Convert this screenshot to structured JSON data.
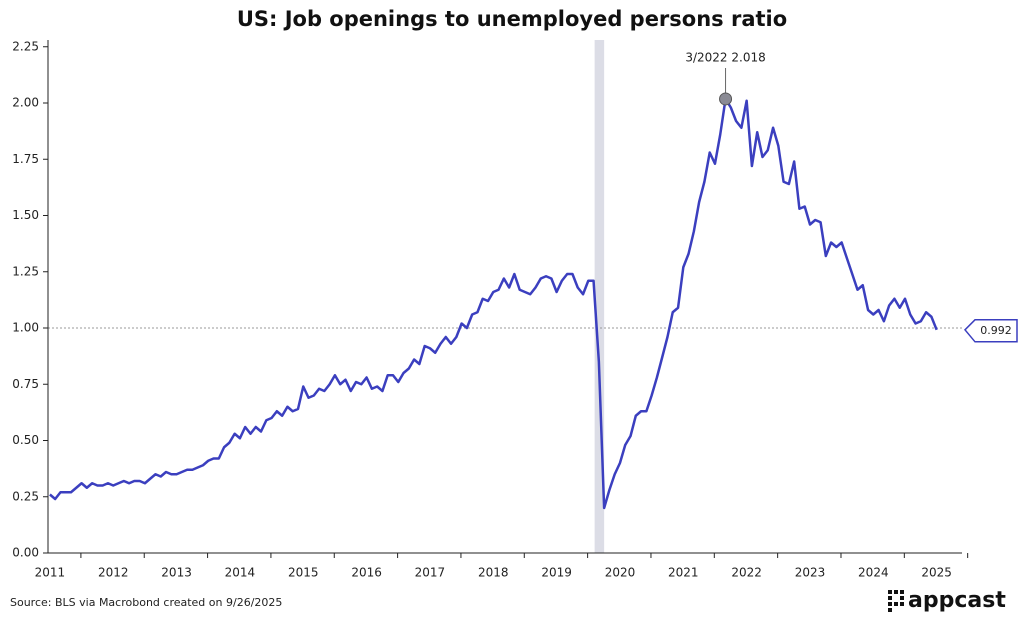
{
  "chart_data": {
    "type": "line",
    "title": "US: Job openings to unemployed persons ratio",
    "source": "Source: BLS via Macrobond created on 9/26/2025",
    "logo": "appcast",
    "annotation": "3/2022 2.018",
    "annotation_index": 128,
    "reference_line": 1,
    "recession_band": [
      2020.1,
      2020.25
    ],
    "color": "#3b3fbf",
    "xlim": [
      2011.47,
      2025.9
    ],
    "ylim": [
      0,
      2.28
    ],
    "xticks": [
      {
        "value": 2011.5,
        "label": "2011"
      },
      {
        "value": 2012.5,
        "label": "2012"
      },
      {
        "value": 2013.5,
        "label": "2013"
      },
      {
        "value": 2014.5,
        "label": "2014"
      },
      {
        "value": 2015.5,
        "label": "2015"
      },
      {
        "value": 2016.5,
        "label": "2016"
      },
      {
        "value": 2017.5,
        "label": "2017"
      },
      {
        "value": 2018.5,
        "label": "2018"
      },
      {
        "value": 2019.5,
        "label": "2019"
      },
      {
        "value": 2020.5,
        "label": "2020"
      },
      {
        "value": 2021.5,
        "label": "2021"
      },
      {
        "value": 2022.5,
        "label": "2022"
      },
      {
        "value": 2023.5,
        "label": "2023"
      },
      {
        "value": 2024.5,
        "label": "2024"
      },
      {
        "value": 2025.5,
        "label": "2025"
      }
    ],
    "yticks": [
      {
        "value": 0,
        "label": "0.00"
      },
      {
        "value": 0.25,
        "label": "0.25"
      },
      {
        "value": 0.5,
        "label": "0.50"
      },
      {
        "value": 0.75,
        "label": "0.75"
      },
      {
        "value": 1,
        "label": "1.00"
      },
      {
        "value": 1.25,
        "label": "1.25"
      },
      {
        "value": 1.5,
        "label": "1.50"
      },
      {
        "value": 1.75,
        "label": "1.75"
      },
      {
        "value": 2,
        "label": "2.00"
      },
      {
        "value": 2.25,
        "label": "2.25"
      }
    ],
    "x": [
      2011.5,
      2011.583,
      2011.667,
      2011.75,
      2011.833,
      2011.917,
      2012,
      2012.083,
      2012.167,
      2012.25,
      2012.333,
      2012.417,
      2012.5,
      2012.583,
      2012.667,
      2012.75,
      2012.833,
      2012.917,
      2013,
      2013.083,
      2013.167,
      2013.25,
      2013.333,
      2013.417,
      2013.5,
      2013.583,
      2013.667,
      2013.75,
      2013.833,
      2013.917,
      2014,
      2014.083,
      2014.167,
      2014.25,
      2014.333,
      2014.417,
      2014.5,
      2014.583,
      2014.667,
      2014.75,
      2014.833,
      2014.917,
      2015,
      2015.083,
      2015.167,
      2015.25,
      2015.333,
      2015.417,
      2015.5,
      2015.583,
      2015.667,
      2015.75,
      2015.833,
      2015.917,
      2016,
      2016.083,
      2016.167,
      2016.25,
      2016.333,
      2016.417,
      2016.5,
      2016.583,
      2016.667,
      2016.75,
      2016.833,
      2016.917,
      2017,
      2017.083,
      2017.167,
      2017.25,
      2017.333,
      2017.417,
      2017.5,
      2017.583,
      2017.667,
      2017.75,
      2017.833,
      2017.917,
      2018,
      2018.083,
      2018.167,
      2018.25,
      2018.333,
      2018.417,
      2018.5,
      2018.583,
      2018.667,
      2018.75,
      2018.833,
      2018.917,
      2019,
      2019.083,
      2019.167,
      2019.25,
      2019.333,
      2019.417,
      2019.5,
      2019.583,
      2019.667,
      2019.75,
      2019.833,
      2019.917,
      2020,
      2020.083,
      2020.167,
      2020.25,
      2020.333,
      2020.417,
      2020.5,
      2020.583,
      2020.667,
      2020.75,
      2020.833,
      2020.917,
      2021,
      2021.083,
      2021.167,
      2021.25,
      2021.333,
      2021.417,
      2021.5,
      2021.583,
      2021.667,
      2021.75,
      2021.833,
      2021.917,
      2022,
      2022.083,
      2022.167,
      2022.25,
      2022.333,
      2022.417,
      2022.5,
      2022.583,
      2022.667,
      2022.75,
      2022.833,
      2022.917,
      2023,
      2023.083,
      2023.167,
      2023.25,
      2023.333,
      2023.417,
      2023.5,
      2023.583,
      2023.667,
      2023.75,
      2023.833,
      2023.917,
      2024,
      2024.083,
      2024.167,
      2024.25,
      2024.333,
      2024.417,
      2024.5,
      2024.583,
      2024.667,
      2024.75,
      2024.833,
      2024.917,
      2025,
      2025.083,
      2025.167,
      2025.25,
      2025.333,
      2025.417,
      2025.5
    ],
    "values": [
      0.26,
      0.24,
      0.27,
      0.27,
      0.27,
      0.29,
      0.31,
      0.29,
      0.31,
      0.3,
      0.3,
      0.31,
      0.3,
      0.31,
      0.32,
      0.31,
      0.32,
      0.32,
      0.31,
      0.33,
      0.35,
      0.34,
      0.36,
      0.35,
      0.35,
      0.36,
      0.37,
      0.37,
      0.38,
      0.39,
      0.41,
      0.42,
      0.42,
      0.47,
      0.49,
      0.53,
      0.51,
      0.56,
      0.53,
      0.56,
      0.54,
      0.59,
      0.6,
      0.63,
      0.61,
      0.65,
      0.63,
      0.64,
      0.74,
      0.69,
      0.7,
      0.73,
      0.72,
      0.75,
      0.79,
      0.75,
      0.77,
      0.72,
      0.76,
      0.75,
      0.78,
      0.73,
      0.74,
      0.72,
      0.79,
      0.79,
      0.76,
      0.8,
      0.82,
      0.86,
      0.84,
      0.92,
      0.91,
      0.89,
      0.93,
      0.96,
      0.93,
      0.96,
      1.02,
      1.0,
      1.06,
      1.07,
      1.13,
      1.12,
      1.16,
      1.17,
      1.22,
      1.18,
      1.24,
      1.17,
      1.16,
      1.15,
      1.18,
      1.22,
      1.23,
      1.22,
      1.16,
      1.21,
      1.24,
      1.24,
      1.18,
      1.15,
      1.21,
      1.21,
      0.85,
      0.2,
      0.28,
      0.35,
      0.4,
      0.48,
      0.52,
      0.61,
      0.63,
      0.63,
      0.7,
      0.78,
      0.87,
      0.96,
      1.07,
      1.09,
      1.27,
      1.33,
      1.43,
      1.56,
      1.65,
      1.78,
      1.73,
      1.86,
      2.018,
      1.98,
      1.92,
      1.89,
      2.01,
      1.72,
      1.87,
      1.76,
      1.79,
      1.89,
      1.81,
      1.65,
      1.64,
      1.74,
      1.53,
      1.54,
      1.46,
      1.48,
      1.47,
      1.32,
      1.38,
      1.36,
      1.38,
      1.31,
      1.24,
      1.17,
      1.19,
      1.08,
      1.06,
      1.08,
      1.03,
      1.1,
      1.13,
      1.09,
      1.13,
      1.06,
      1.02,
      1.03,
      1.07,
      1.05,
      0.992
    ]
  }
}
